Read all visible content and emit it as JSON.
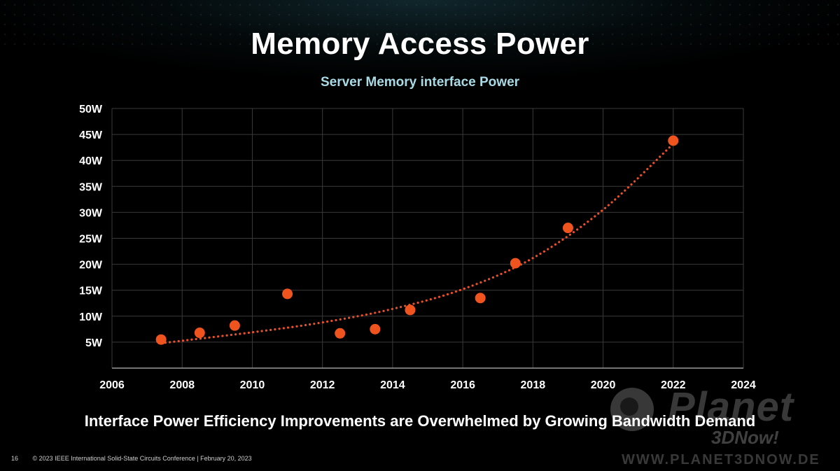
{
  "slide": {
    "title": "Memory Access Power",
    "caption": "Interface Power Efficiency Improvements are Overwhelmed by Growing Bandwidth Demand",
    "page_number": "16",
    "footer_text": "© 2023 IEEE International Solid-State Circuits Conference  |  February 20, 2023"
  },
  "watermark": {
    "name": "Planet",
    "sub": "3DNow!",
    "url": "WWW.PLANET3DNOW.DE"
  },
  "colors": {
    "background": "#000000",
    "marker": "#f0541e",
    "trendline": "#e8502a",
    "grid": "#3a3a3a",
    "subtitle": "#a8dbe6"
  },
  "chart_data": {
    "type": "scatter",
    "title": "Server Memory interface Power",
    "xlabel": "",
    "ylabel": "",
    "xlim": [
      2006,
      2024
    ],
    "ylim": [
      0,
      50
    ],
    "x_ticks": [
      2006,
      2008,
      2010,
      2012,
      2014,
      2016,
      2018,
      2020,
      2022,
      2024
    ],
    "y_ticks": [
      5,
      10,
      15,
      20,
      25,
      30,
      35,
      40,
      45,
      50
    ],
    "y_tick_labels": [
      "5W",
      "10W",
      "15W",
      "20W",
      "25W",
      "30W",
      "35W",
      "40W",
      "45W",
      "50W"
    ],
    "grid": true,
    "legend": "none",
    "series": [
      {
        "points": [
          {
            "x": 2007.4,
            "y": 5.5
          },
          {
            "x": 2008.5,
            "y": 6.8
          },
          {
            "x": 2009.5,
            "y": 8.2
          },
          {
            "x": 2011.0,
            "y": 14.3
          },
          {
            "x": 2012.5,
            "y": 6.7
          },
          {
            "x": 2013.5,
            "y": 7.5
          },
          {
            "x": 2014.5,
            "y": 11.2
          },
          {
            "x": 2016.5,
            "y": 13.5
          },
          {
            "x": 2017.5,
            "y": 20.2
          },
          {
            "x": 2019.0,
            "y": 27.0
          },
          {
            "x": 2022.0,
            "y": 43.8
          }
        ]
      }
    ],
    "trendline": {
      "type": "exponential-fit",
      "style": "dotted",
      "x_range": [
        2007.4,
        2022.0
      ],
      "points": [
        {
          "x": 2007.4,
          "y": 4.8
        },
        {
          "x": 2010,
          "y": 6.9
        },
        {
          "x": 2012,
          "y": 8.8
        },
        {
          "x": 2014,
          "y": 11.4
        },
        {
          "x": 2016,
          "y": 15.2
        },
        {
          "x": 2018,
          "y": 21.2
        },
        {
          "x": 2020,
          "y": 30.5
        },
        {
          "x": 2022,
          "y": 43.2
        }
      ]
    }
  }
}
